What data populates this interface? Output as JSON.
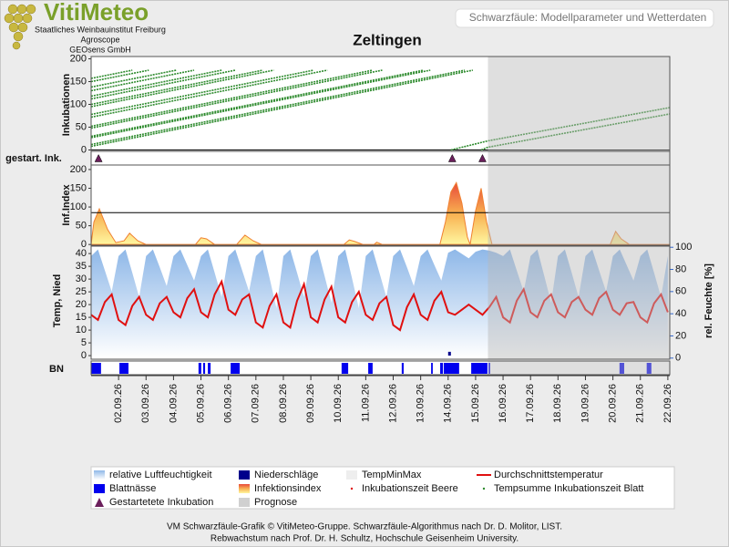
{
  "header": {
    "logo": "VitiMeteo",
    "institutions": [
      "Staatliches Weinbauinstitut Freiburg",
      "Agroscope",
      "GEOsens GmbH"
    ],
    "subtitle": "Schwarzfäule: Modellparameter und Wetterdaten"
  },
  "chart_data": [
    {
      "type": "line",
      "title": "Zeltingen",
      "ylabel": "Inkubationen",
      "xlim": [
        1,
        22.07
      ],
      "ylim": [
        -3,
        205
      ],
      "yticks": [
        0,
        50,
        100,
        150,
        200
      ],
      "zero_line": true,
      "forecast_start": 15.45,
      "series": [
        {
          "color": "#2e8b2e",
          "x": [
            1,
            2.5
          ],
          "values": [
            157,
            175
          ]
        },
        {
          "color": "#2e8b2e",
          "x": [
            1,
            3.1
          ],
          "values": [
            150,
            175
          ]
        },
        {
          "color": "#2e8b2e",
          "x": [
            1,
            4.1
          ],
          "values": [
            138,
            175
          ]
        },
        {
          "color": "#2e8b2e",
          "x": [
            1,
            4.75
          ],
          "values": [
            130,
            175
          ]
        },
        {
          "color": "#2e8b2e",
          "x": [
            1,
            5.75
          ],
          "values": [
            118,
            175
          ]
        },
        {
          "color": "#2e8b2e",
          "x": [
            1,
            6.25
          ],
          "values": [
            112,
            175
          ]
        },
        {
          "color": "#2e8b2e",
          "x": [
            1,
            7.25
          ],
          "values": [
            100,
            175
          ]
        },
        {
          "color": "#2e8b2e",
          "x": [
            1,
            7.65
          ],
          "values": [
            95,
            175
          ]
        },
        {
          "color": "#2e8b2e",
          "x": [
            1,
            9.1
          ],
          "values": [
            78,
            175
          ]
        },
        {
          "color": "#2e8b2e",
          "x": [
            1,
            9.6
          ],
          "values": [
            72,
            175
          ]
        },
        {
          "color": "#2e8b2e",
          "x": [
            1,
            11.25
          ],
          "values": [
            52,
            175
          ]
        },
        {
          "color": "#2e8b2e",
          "x": [
            1,
            11.6
          ],
          "values": [
            48,
            175
          ]
        },
        {
          "color": "#2e8b2e",
          "x": [
            1,
            13.1
          ],
          "values": [
            30,
            175
          ]
        },
        {
          "color": "#2e8b2e",
          "x": [
            1,
            13.35
          ],
          "values": [
            27,
            175
          ]
        },
        {
          "color": "#2e8b2e",
          "x": [
            1,
            14.6
          ],
          "values": [
            12,
            175
          ]
        },
        {
          "color": "#2e8b2e",
          "x": [
            1,
            14.9
          ],
          "values": [
            8,
            175
          ]
        },
        {
          "color": "#2e8b2e",
          "x": [
            14.1,
            15.45,
            22.07
          ],
          "values": [
            0,
            20,
            93
          ]
        },
        {
          "color": "#2e8b2e",
          "x": [
            15.2,
            15.45,
            22.07
          ],
          "values": [
            0,
            6,
            79
          ]
        }
      ]
    },
    {
      "type": "event",
      "ylabel": "gestart. Ink.",
      "color": "#6b1f5c",
      "x": [
        1.27,
        14.15,
        15.25
      ]
    },
    {
      "type": "area",
      "ylabel": "Inf.Index",
      "ylim": [
        -2,
        212
      ],
      "yticks": [
        0,
        50,
        100,
        150,
        200
      ],
      "threshold": 85,
      "x": [
        1,
        1.1,
        1.3,
        1.6,
        1.9,
        2.2,
        2.4,
        2.7,
        3.0,
        4.8,
        5.0,
        5.2,
        5.5,
        6.3,
        6.6,
        6.9,
        7.2,
        10.2,
        10.4,
        10.6,
        10.9,
        11.3,
        11.4,
        11.6,
        13.7,
        13.9,
        14.1,
        14.3,
        14.5,
        14.7,
        14.8,
        15.0,
        15.2,
        15.4,
        15.6,
        19.9,
        20.1,
        20.3,
        20.6,
        22.07
      ],
      "values": [
        0,
        60,
        95,
        40,
        5,
        10,
        30,
        10,
        0,
        0,
        18,
        15,
        0,
        0,
        25,
        10,
        0,
        0,
        12,
        8,
        0,
        0,
        6,
        0,
        0,
        60,
        140,
        165,
        110,
        20,
        0,
        90,
        150,
        60,
        0,
        0,
        35,
        15,
        0,
        0
      ]
    },
    {
      "type": "combo",
      "ylabel": "Temp, Nied",
      "y2label": "rel. Feuchte [%]",
      "ylim": [
        -1.4,
        42.9
      ],
      "yticks": [
        0,
        5,
        10,
        15,
        20,
        25,
        30,
        35,
        40
      ],
      "y2lim": [
        -1,
        101
      ],
      "y2ticks": [
        0,
        20,
        40,
        60,
        80,
        100
      ],
      "xticks": [
        {
          "value": 2,
          "label": "02.09.26"
        },
        {
          "value": 3,
          "label": "03.09.26"
        },
        {
          "value": 4,
          "label": "04.09.26"
        },
        {
          "value": 5,
          "label": "05.09.26"
        },
        {
          "value": 6,
          "label": "06.09.26"
        },
        {
          "value": 7,
          "label": "07.09.26"
        },
        {
          "value": 8,
          "label": "08.09.26"
        },
        {
          "value": 9,
          "label": "09.09.26"
        },
        {
          "value": 10,
          "label": "10.09.26"
        },
        {
          "value": 11,
          "label": "11.09.26"
        },
        {
          "value": 12,
          "label": "12.09.26"
        },
        {
          "value": 13,
          "label": "13.09.26"
        },
        {
          "value": 14,
          "label": "14.09.26"
        },
        {
          "value": 15,
          "label": "15.09.26"
        },
        {
          "value": 16,
          "label": "16.09.26"
        },
        {
          "value": 17,
          "label": "17.09.26"
        },
        {
          "value": 18,
          "label": "18.09.26"
        },
        {
          "value": 19,
          "label": "19.09.26"
        },
        {
          "value": 20,
          "label": "20.09.26"
        },
        {
          "value": 21,
          "label": "21.09.26"
        },
        {
          "value": 22,
          "label": "22.09.26"
        }
      ],
      "series": [
        {
          "type": "area",
          "axis": "y2",
          "color": "#8fb8e8",
          "x": [
            1,
            1.25,
            1.5,
            1.75,
            2,
            2.25,
            2.5,
            2.75,
            3,
            3.25,
            3.5,
            3.75,
            4,
            4.25,
            4.5,
            4.75,
            5,
            5.25,
            5.5,
            5.75,
            6,
            6.25,
            6.5,
            6.75,
            7,
            7.25,
            7.5,
            7.75,
            8,
            8.25,
            8.5,
            8.75,
            9,
            9.25,
            9.5,
            9.75,
            10,
            10.25,
            10.5,
            10.75,
            11,
            11.25,
            11.5,
            11.75,
            12,
            12.25,
            12.5,
            12.75,
            13,
            13.25,
            13.5,
            13.75,
            14,
            14.25,
            14.5,
            14.75,
            15,
            15.25,
            15.5,
            15.75,
            16,
            16.25,
            16.5,
            16.75,
            17,
            17.25,
            17.5,
            17.75,
            18,
            18.25,
            18.5,
            18.75,
            19,
            19.25,
            19.5,
            19.75,
            20,
            20.25,
            20.5,
            20.75,
            21,
            21.25,
            21.5,
            21.75,
            22
          ],
          "values": [
            92,
            98,
            79,
            60,
            92,
            98,
            77,
            55,
            92,
            98,
            82,
            65,
            92,
            98,
            84,
            70,
            92,
            98,
            77,
            55,
            92,
            98,
            79,
            60,
            92,
            98,
            72,
            45,
            92,
            98,
            77,
            55,
            92,
            98,
            74,
            50,
            92,
            98,
            72,
            45,
            92,
            98,
            77,
            55,
            92,
            98,
            82,
            65,
            92,
            98,
            84,
            70,
            95,
            98,
            94,
            90,
            96,
            98,
            97,
            95,
            92,
            98,
            79,
            60,
            92,
            98,
            74,
            50,
            92,
            98,
            77,
            55,
            92,
            98,
            79,
            60,
            92,
            98,
            84,
            70,
            92,
            98,
            77,
            55,
            92
          ]
        },
        {
          "type": "line",
          "color": "#e01010",
          "x": [
            1,
            1.25,
            1.5,
            1.75,
            2,
            2.25,
            2.5,
            2.75,
            3,
            3.25,
            3.5,
            3.75,
            4,
            4.25,
            4.5,
            4.75,
            5,
            5.25,
            5.5,
            5.75,
            6,
            6.25,
            6.5,
            6.75,
            7,
            7.25,
            7.5,
            7.75,
            8,
            8.25,
            8.5,
            8.75,
            9,
            9.25,
            9.5,
            9.75,
            10,
            10.25,
            10.5,
            10.75,
            11,
            11.25,
            11.5,
            11.75,
            12,
            12.25,
            12.5,
            12.75,
            13,
            13.25,
            13.5,
            13.75,
            14,
            14.25,
            14.5,
            14.75,
            15,
            15.25,
            15.5,
            15.75,
            16,
            16.25,
            16.5,
            16.75,
            17,
            17.25,
            17.5,
            17.75,
            18,
            18.25,
            18.5,
            18.75,
            19,
            19.25,
            19.5,
            19.75,
            20,
            20.25,
            20.5,
            20.75,
            21,
            21.25,
            21.5,
            21.75,
            22
          ],
          "values": [
            16,
            14,
            21,
            24,
            14,
            12,
            19.5,
            23,
            16,
            14,
            20.5,
            23,
            17,
            15,
            22.5,
            26,
            17,
            15,
            24,
            29,
            18,
            16,
            22,
            24,
            13,
            11,
            19.5,
            24,
            13,
            11,
            21.5,
            28,
            15,
            13,
            22,
            27,
            15,
            13,
            21,
            25,
            16,
            14,
            20.5,
            23,
            12,
            10,
            19,
            24,
            16,
            14,
            21.5,
            25,
            17,
            16,
            18,
            20,
            18,
            16,
            19,
            23,
            15,
            13,
            21.5,
            26,
            17,
            15,
            21.5,
            24,
            17,
            15,
            21,
            23,
            18,
            16,
            22.5,
            25,
            18,
            16,
            20.5,
            21,
            15,
            13,
            20.5,
            24,
            17
          ]
        },
        {
          "type": "bar",
          "color": "#00008b",
          "x": [
            14.05
          ],
          "values": [
            1.5
          ]
        }
      ]
    },
    {
      "type": "interval",
      "ylabel": "BN",
      "color": "#0000ee",
      "intervals": [
        [
          1.0,
          1.36
        ],
        [
          2.03,
          2.36
        ],
        [
          4.91,
          5.01
        ],
        [
          5.08,
          5.15
        ],
        [
          5.25,
          5.35
        ],
        [
          6.08,
          6.41
        ],
        [
          10.12,
          10.36
        ],
        [
          11.09,
          11.25
        ],
        [
          12.31,
          12.38
        ],
        [
          13.38,
          13.44
        ],
        [
          13.71,
          13.81
        ],
        [
          13.84,
          14.4
        ],
        [
          14.84,
          15.43
        ],
        [
          15.47,
          15.53
        ],
        [
          20.24,
          20.41
        ],
        [
          21.23,
          21.4
        ]
      ]
    }
  ],
  "legend": [
    {
      "name": "relative Luftfeuchtigkeit",
      "symbol": "humidity",
      "color": "#8fb8e8"
    },
    {
      "name": "Niederschläge",
      "symbol": "rect",
      "color": "#00008b"
    },
    {
      "name": "TempMinMax",
      "symbol": "rect",
      "color": "#eeeeee"
    },
    {
      "name": "Durchschnittstemperatur",
      "symbol": "line",
      "color": "#e01010"
    },
    {
      "name": "Blattnässe",
      "symbol": "rect",
      "color": "#0000ee"
    },
    {
      "name": "Infektionsindex",
      "symbol": "infection",
      "color": "#f0a030"
    },
    {
      "name": "Inkubationszeit Beere",
      "symbol": "dot",
      "color": "#e01010"
    },
    {
      "name": "Tempsumme Inkubationszeit Blatt",
      "symbol": "dot",
      "color": "#2e8b2e"
    },
    {
      "name": "Gestartetete Inkubation",
      "symbol": "triangle",
      "color": "#6b1f5c"
    },
    {
      "name": "Prognose",
      "symbol": "rect",
      "color": "#d0d0d0"
    }
  ],
  "footer": [
    "VM Schwarzfäule-Grafik © VitiMeteo-Gruppe. Schwarzfäule-Algorithmus nach Dr. D. Molitor, LIST.",
    "Rebwachstum nach Prof. Dr. H. Schultz, Hochschule Geisenheim University."
  ]
}
